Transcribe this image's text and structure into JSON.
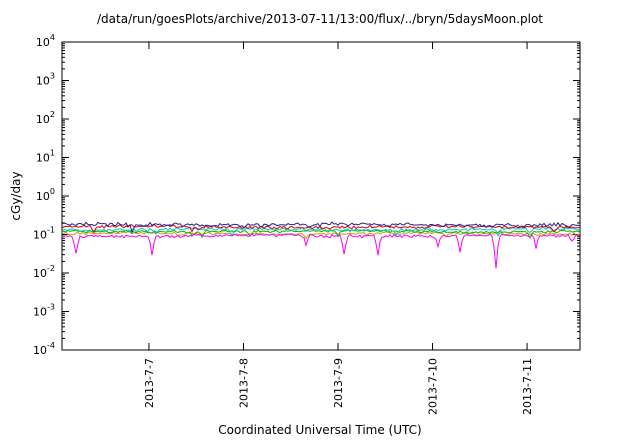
{
  "chart_data": {
    "type": "line",
    "title": "/data/run/goesPlots/archive/2013-07-11/13:00/flux/../bryn/5daysMoon.plot",
    "xlabel": "Coordinated Universal Time (UTC)",
    "ylabel": "cGy/day",
    "y_scale": "log10",
    "ylim_exponents": [
      -4,
      4
    ],
    "y_tick_exponents": [
      4,
      3,
      2,
      1,
      0,
      -1,
      -2,
      -3,
      -4
    ],
    "x_domain_days": [
      6.08,
      11.56
    ],
    "x_ticks": [
      {
        "day": 7,
        "label": "2013-7-7"
      },
      {
        "day": 8,
        "label": "2013-7-8"
      },
      {
        "day": 9,
        "label": "2013-7-9"
      },
      {
        "day": 10,
        "label": "2013-7-10"
      },
      {
        "day": 11,
        "label": "2013-7-11"
      }
    ],
    "grid": false,
    "legend": "none",
    "series": [
      {
        "name": "dark-yellow",
        "color": "#c8a000",
        "mean_cgy_per_day": 0.105,
        "noise_decades": 0.035,
        "spike_count": 4,
        "spike_depth_decades": [
          0.06,
          0.15
        ]
      },
      {
        "name": "green",
        "color": "#00b400",
        "mean_cgy_per_day": 0.12,
        "noise_decades": 0.035,
        "spike_count": 5,
        "spike_depth_decades": [
          0.06,
          0.18
        ]
      },
      {
        "name": "cyan",
        "color": "#00c8c8",
        "mean_cgy_per_day": 0.135,
        "noise_decades": 0.04,
        "spike_count": 5,
        "spike_depth_decades": [
          0.06,
          0.18
        ]
      },
      {
        "name": "red",
        "color": "#e00000",
        "mean_cgy_per_day": 0.158,
        "noise_decades": 0.04,
        "spike_count": 5,
        "spike_depth_decades": [
          0.06,
          0.15
        ]
      },
      {
        "name": "navy",
        "color": "#202090",
        "mean_cgy_per_day": 0.182,
        "noise_decades": 0.05,
        "spike_count": 6,
        "spike_depth_decades": [
          0.06,
          0.18
        ]
      },
      {
        "name": "magenta",
        "color": "#ff00ff",
        "mean_cgy_per_day": 0.093,
        "noise_decades": 0.045,
        "spike_count": 11,
        "spike_depth_decades": [
          0.15,
          0.55
        ]
      }
    ]
  }
}
